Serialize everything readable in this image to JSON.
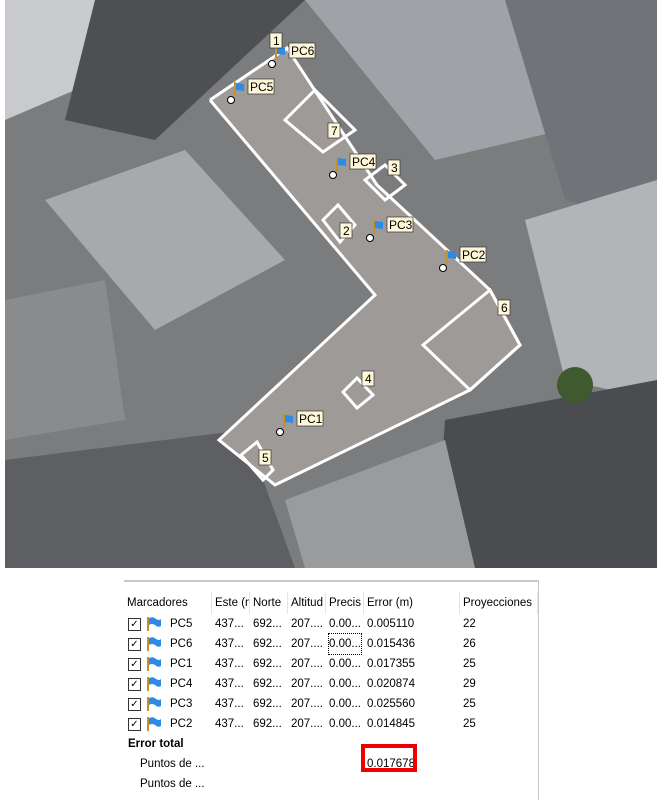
{
  "map": {
    "markers": [
      {
        "id": "PC1",
        "icon": "flag-icon"
      },
      {
        "id": "PC2",
        "icon": "flag-icon"
      },
      {
        "id": "PC3",
        "icon": "flag-icon"
      },
      {
        "id": "PC4",
        "icon": "flag-icon"
      },
      {
        "id": "PC5",
        "icon": "flag-icon"
      },
      {
        "id": "PC6",
        "icon": "flag-icon"
      }
    ],
    "region_labels": [
      "1",
      "2",
      "3",
      "4",
      "5",
      "6",
      "7"
    ]
  },
  "table": {
    "headers": [
      "Marcadores",
      "Este (m)",
      "Norte",
      "Altitud",
      "Precis",
      "Error (m)",
      "Proyecciones"
    ],
    "rows": [
      {
        "name": "PC5",
        "este": "437...",
        "norte": "692...",
        "alt": "207....",
        "prec": "0.00...",
        "error": "0.005110",
        "proy": "22",
        "checked": true
      },
      {
        "name": "PC6",
        "este": "437...",
        "norte": "692...",
        "alt": "207....",
        "prec": "0.00...",
        "error": "0.015436",
        "proy": "26",
        "checked": true
      },
      {
        "name": "PC1",
        "este": "437...",
        "norte": "692...",
        "alt": "207....",
        "prec": "0.00...",
        "error": "0.017355",
        "proy": "25",
        "checked": true
      },
      {
        "name": "PC4",
        "este": "437...",
        "norte": "692...",
        "alt": "207....",
        "prec": "0.00...",
        "error": "0.020874",
        "proy": "29",
        "checked": true
      },
      {
        "name": "PC3",
        "este": "437...",
        "norte": "692...",
        "alt": "207....",
        "prec": "0.00...",
        "error": "0.025560",
        "proy": "25",
        "checked": true
      },
      {
        "name": "PC2",
        "este": "437...",
        "norte": "692...",
        "alt": "207....",
        "prec": "0.00...",
        "error": "0.014845",
        "proy": "25",
        "checked": true
      }
    ],
    "total_label": "Error total",
    "totals": [
      {
        "label": "Puntos de ...",
        "error": "0.017678"
      },
      {
        "label": "Puntos de ...",
        "error": ""
      }
    ],
    "highlight_color": "#e00000"
  }
}
